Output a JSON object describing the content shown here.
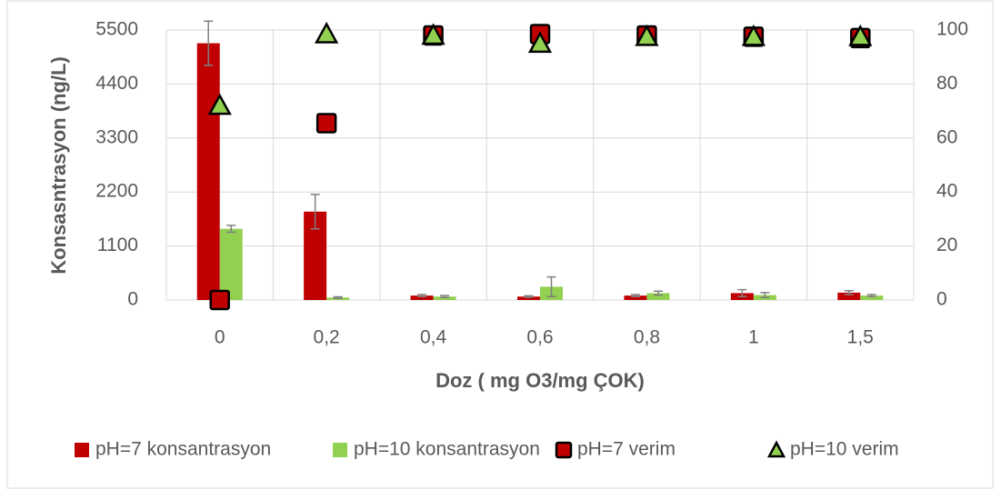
{
  "chart_data": {
    "type": "bar",
    "categories": [
      "0",
      "0,2",
      "0,4",
      "0,6",
      "0,8",
      "1",
      "1,5"
    ],
    "x_label": "Doz ( mg O3/mg ÇOK)",
    "y_label": "Konsasntrasyon (ng/L)",
    "ylim": [
      0,
      5500
    ],
    "yticks": [
      0,
      1100,
      2200,
      3300,
      4400,
      5500
    ],
    "y2lim": [
      0,
      100
    ],
    "y2ticks": [
      0,
      20,
      40,
      60,
      80,
      100
    ],
    "grid": true,
    "legend": "bottom",
    "series": [
      {
        "name": "pH=7 konsantrasyon",
        "kind": "bar",
        "color": "#c00000",
        "values": [
          5230,
          1800,
          90,
          70,
          90,
          140,
          150
        ],
        "errors": [
          450,
          350,
          20,
          15,
          20,
          70,
          40
        ]
      },
      {
        "name": "pH=10 konsantrasyon",
        "kind": "bar",
        "color": "#92d050",
        "values": [
          1450,
          50,
          70,
          270,
          140,
          100,
          90
        ],
        "errors": [
          70,
          15,
          20,
          200,
          40,
          50,
          20
        ]
      },
      {
        "name": "pH=7 verim",
        "kind": "square",
        "axis": "y2",
        "color": "#c00000",
        "values": [
          0,
          65.5,
          98,
          98.5,
          98,
          97.5,
          97
        ]
      },
      {
        "name": "pH=10 verim",
        "kind": "triangle",
        "axis": "y2",
        "color": "#92d050",
        "values": [
          72,
          98.5,
          98,
          95,
          97.5,
          97.5,
          97.5
        ]
      }
    ]
  }
}
